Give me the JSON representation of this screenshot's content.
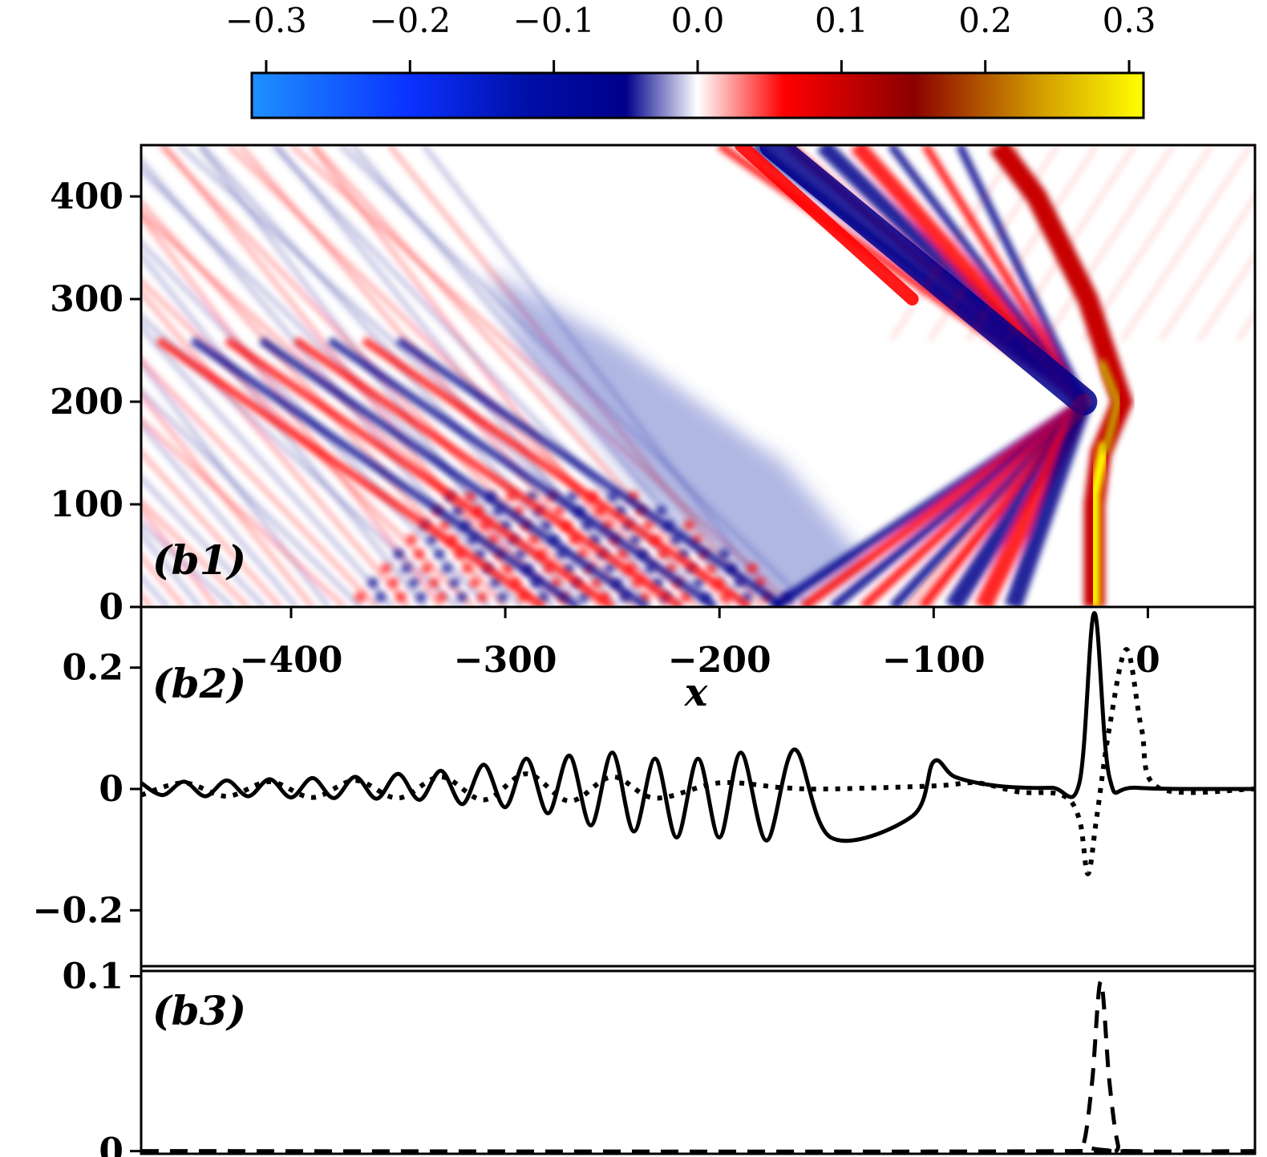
{
  "chart_data": [
    {
      "id": "b1",
      "type": "heatmap",
      "panel_label": "(b1)",
      "xlabel": "x",
      "ylabel": "",
      "xlim": [
        -470,
        50
      ],
      "ylim": [
        0,
        450
      ],
      "x_ticks": [
        -400,
        -300,
        -200,
        -100,
        0
      ],
      "x_tick_labels": [
        "−400",
        "−300",
        "−200",
        "−100",
        "0"
      ],
      "y_ticks": [
        0,
        100,
        200,
        300,
        400
      ],
      "y_tick_labels": [
        "0",
        "100",
        "200",
        "300",
        "400"
      ],
      "colorbar": {
        "range": [
          -0.31,
          0.31
        ],
        "ticks": [
          -0.3,
          -0.2,
          -0.1,
          0.0,
          0.1,
          0.2,
          0.3
        ],
        "tick_labels": [
          "−0.3",
          "−0.2",
          "−0.1",
          "0.0",
          "0.1",
          "0.2",
          "0.3"
        ],
        "stops": [
          {
            "v": -0.31,
            "color": "#1e90ff"
          },
          {
            "v": -0.2,
            "color": "#0a32ff"
          },
          {
            "v": -0.12,
            "color": "#000fa8"
          },
          {
            "v": -0.05,
            "color": "#00008b"
          },
          {
            "v": 0.0,
            "color": "#ffffff"
          },
          {
            "v": 0.06,
            "color": "#ff0000"
          },
          {
            "v": 0.15,
            "color": "#8b0000"
          },
          {
            "v": 0.24,
            "color": "#d4a000"
          },
          {
            "v": 0.31,
            "color": "#ffff00"
          }
        ]
      },
      "soliton_track": [
        [
          -25,
          0
        ],
        [
          -25,
          100
        ],
        [
          -22,
          150
        ],
        [
          -12,
          200
        ],
        [
          -28,
          300
        ],
        [
          -52,
          400
        ],
        [
          -70,
          450
        ]
      ],
      "reflected_front": [
        [
          -30,
          200
        ],
        [
          -190,
          450
        ]
      ],
      "left_front": [
        [
          -170,
          0
        ],
        [
          -300,
          200
        ],
        [
          -360,
          400
        ]
      ]
    },
    {
      "id": "b2",
      "type": "line",
      "panel_label": "(b2)",
      "xlim": [
        -470,
        50
      ],
      "ylim": [
        -0.3,
        0.3
      ],
      "y_ticks": [
        -0.2,
        0,
        0.2
      ],
      "y_tick_labels": [
        "−0.2",
        "0",
        "0.2"
      ],
      "series": [
        {
          "name": "solid",
          "style": "solid",
          "points": [
            [
              -470,
              0.01
            ],
            [
              -460,
              -0.01
            ],
            [
              -450,
              0.012
            ],
            [
              -440,
              -0.012
            ],
            [
              -430,
              0.014
            ],
            [
              -420,
              -0.012
            ],
            [
              -410,
              0.016
            ],
            [
              -400,
              -0.014
            ],
            [
              -390,
              0.018
            ],
            [
              -380,
              -0.015
            ],
            [
              -370,
              0.02
            ],
            [
              -360,
              -0.016
            ],
            [
              -350,
              0.025
            ],
            [
              -340,
              -0.018
            ],
            [
              -330,
              0.03
            ],
            [
              -320,
              -0.025
            ],
            [
              -310,
              0.04
            ],
            [
              -300,
              -0.03
            ],
            [
              -290,
              0.05
            ],
            [
              -280,
              -0.04
            ],
            [
              -270,
              0.055
            ],
            [
              -260,
              -0.06
            ],
            [
              -250,
              0.06
            ],
            [
              -240,
              -0.07
            ],
            [
              -230,
              0.05
            ],
            [
              -220,
              -0.08
            ],
            [
              -210,
              0.05
            ],
            [
              -200,
              -0.08
            ],
            [
              -190,
              0.06
            ],
            [
              -178,
              -0.085
            ],
            [
              -165,
              0.065
            ],
            [
              -148,
              -0.08
            ],
            [
              -110,
              -0.045
            ],
            [
              -100,
              0.045
            ],
            [
              -90,
              0.02
            ],
            [
              -70,
              0.005
            ],
            [
              -45,
              0.002
            ],
            [
              -32,
              0.01
            ],
            [
              -25,
              0.29
            ],
            [
              -18,
              0.02
            ],
            [
              -5,
              0.002
            ],
            [
              50,
              0
            ]
          ]
        },
        {
          "name": "dotted",
          "style": "dotted",
          "points": [
            [
              -470,
              -0.01
            ],
            [
              -450,
              0.01
            ],
            [
              -430,
              -0.012
            ],
            [
              -410,
              0.012
            ],
            [
              -390,
              -0.014
            ],
            [
              -370,
              0.014
            ],
            [
              -350,
              -0.015
            ],
            [
              -330,
              0.02
            ],
            [
              -310,
              -0.018
            ],
            [
              -290,
              0.025
            ],
            [
              -270,
              -0.02
            ],
            [
              -250,
              0.02
            ],
            [
              -230,
              -0.015
            ],
            [
              -200,
              0.01
            ],
            [
              -170,
              0.002
            ],
            [
              -150,
              0
            ],
            [
              -100,
              0.005
            ],
            [
              -80,
              0.01
            ],
            [
              -60,
              -0.005
            ],
            [
              -40,
              -0.01
            ],
            [
              -32,
              -0.05
            ],
            [
              -28,
              -0.14
            ],
            [
              -24,
              -0.05
            ],
            [
              -18,
              0.1
            ],
            [
              -10,
              0.23
            ],
            [
              -3,
              0.1
            ],
            [
              5,
              0.002
            ],
            [
              50,
              0
            ]
          ]
        }
      ]
    },
    {
      "id": "b3",
      "type": "line",
      "panel_label": "(b3)",
      "xlim": [
        -470,
        50
      ],
      "ylim": [
        -0.002,
        0.103
      ],
      "y_ticks": [
        0,
        0.1
      ],
      "y_tick_labels": [
        "0",
        "0.1"
      ],
      "series": [
        {
          "name": "dashed",
          "style": "dashed",
          "points": [
            [
              -470,
              0
            ],
            [
              -35,
              0
            ],
            [
              -30,
              0.004
            ],
            [
              -26,
              0.04
            ],
            [
              -22,
              0.097
            ],
            [
              -18,
              0.04
            ],
            [
              -14,
              0.004
            ],
            [
              -10,
              0
            ],
            [
              50,
              0
            ]
          ]
        }
      ]
    }
  ]
}
